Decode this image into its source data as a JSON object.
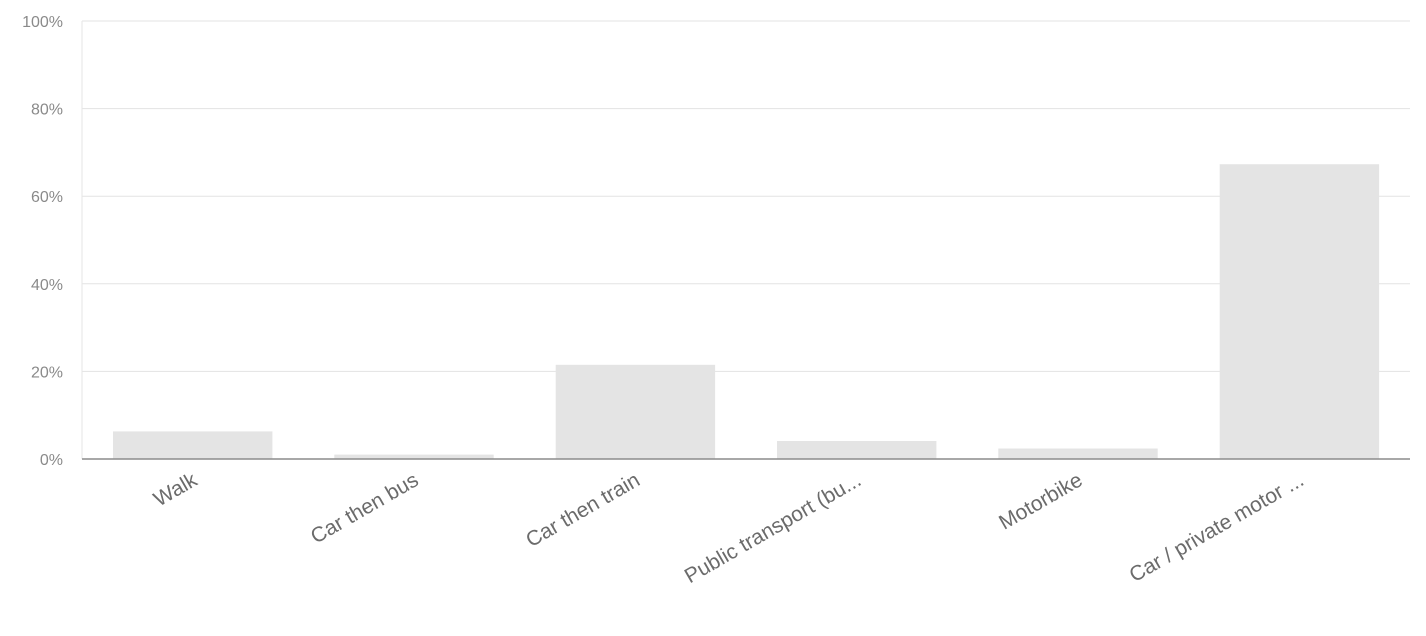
{
  "chart_data": {
    "type": "bar",
    "title": "",
    "xlabel": "",
    "ylabel": "",
    "categories": [
      "Walk",
      "Car then bus",
      "Car then train",
      "Public transport (bu...",
      "Motorbike",
      "Car / private motor ..."
    ],
    "values": [
      6.3,
      1.0,
      21.5,
      4.1,
      2.4,
      67.3
    ],
    "value_unit": "%",
    "ylim": [
      0,
      100
    ],
    "yticks": [
      0,
      20,
      40,
      60,
      80,
      100
    ],
    "ytick_labels": [
      "0%",
      "20%",
      "40%",
      "60%",
      "80%",
      "100%"
    ],
    "grid": true,
    "legend": "none",
    "bar_color": "#e4e4e4"
  }
}
